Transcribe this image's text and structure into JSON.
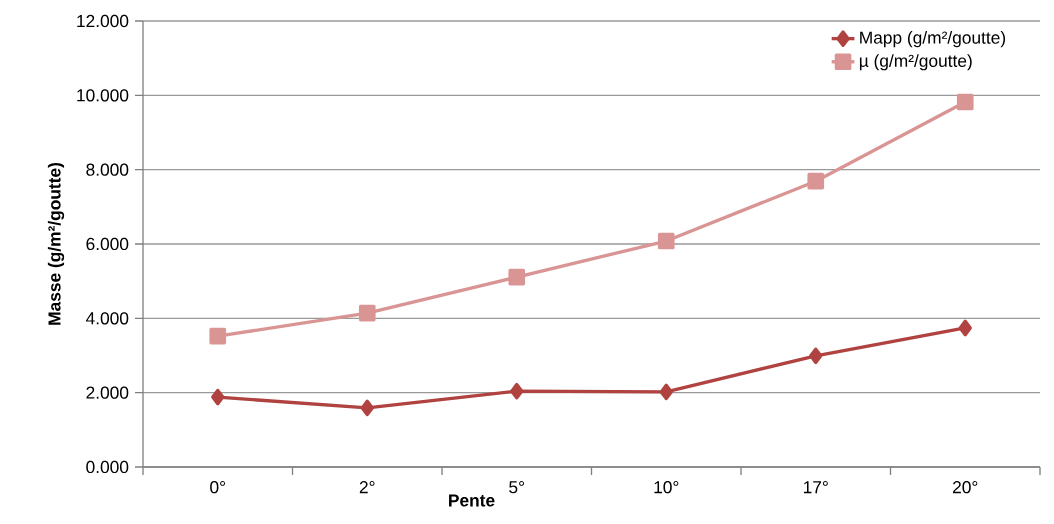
{
  "chart_data": {
    "type": "line",
    "xlabel": "Pente",
    "ylabel": "Masse (g/m²/goutte)",
    "categories": [
      "0°",
      "2°",
      "5°",
      "10°",
      "17°",
      "20°"
    ],
    "series": [
      {
        "name": "Mapp  (g/m²/goutte)",
        "color": "#b04240",
        "marker": "diamond",
        "values": [
          1.88,
          1.59,
          2.04,
          2.02,
          2.99,
          3.74
        ]
      },
      {
        "name": "µ  (g/m²/goutte)",
        "color": "#d99594",
        "marker": "square",
        "values": [
          3.52,
          4.14,
          5.11,
          6.08,
          7.69,
          9.82
        ]
      }
    ],
    "ylim": [
      0,
      12
    ],
    "yticks": [
      {
        "value": 0,
        "label": "0.000"
      },
      {
        "value": 2,
        "label": "2.000"
      },
      {
        "value": 4,
        "label": "4.000"
      },
      {
        "value": 6,
        "label": "6.000"
      },
      {
        "value": 8,
        "label": "8.000"
      },
      {
        "value": 10,
        "label": "10.000"
      },
      {
        "value": 12,
        "label": "12.000"
      }
    ],
    "grid": "y",
    "legend": "top right",
    "line_style": "solid"
  }
}
